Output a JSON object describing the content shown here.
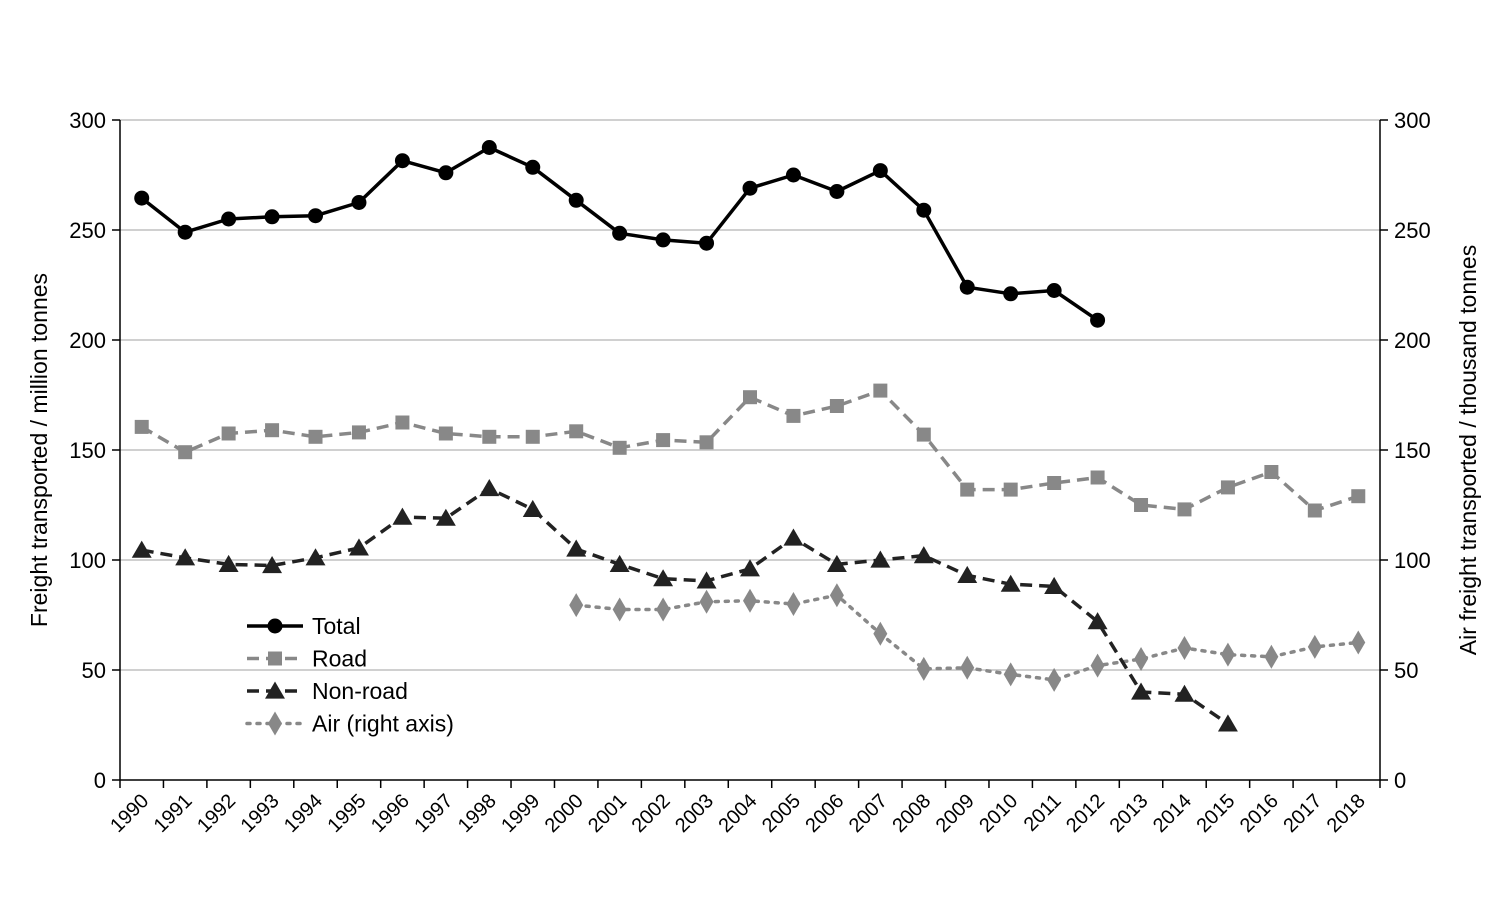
{
  "chart_data": {
    "type": "line",
    "title": "",
    "xlabel": "",
    "ylabel": "Freight transported / million tonnes",
    "y2label": "Air freight transported / thousand tonnes",
    "ylim": [
      0,
      300
    ],
    "y2lim": [
      0,
      300
    ],
    "yticks": [
      0,
      50,
      100,
      150,
      200,
      250,
      300
    ],
    "y2ticks": [
      0,
      50,
      100,
      150,
      200,
      250,
      300
    ],
    "grid": true,
    "legend_position": "lower-left",
    "x": [
      "1990",
      "1991",
      "1992",
      "1993",
      "1994",
      "1995",
      "1996",
      "1997",
      "1998",
      "1999",
      "2000",
      "2001",
      "2002",
      "2003",
      "2004",
      "2005",
      "2006",
      "2007",
      "2008",
      "2009",
      "2010",
      "2011",
      "2012",
      "2013",
      "2014",
      "2015",
      "2016",
      "2017",
      "2018"
    ],
    "series": [
      {
        "name": "Total",
        "axis": "left",
        "color": "#000000",
        "line_style": "solid",
        "marker": "circle",
        "values": [
          264.5,
          249,
          255,
          256,
          256.5,
          262.5,
          281.5,
          276,
          287.5,
          278.5,
          263.5,
          248.5,
          245.5,
          244,
          269,
          275,
          267.5,
          277,
          259,
          224,
          221,
          222.5,
          209,
          null,
          null,
          null,
          null,
          null,
          null
        ]
      },
      {
        "name": "Road",
        "axis": "left",
        "color": "#888888",
        "line_style": "dashed",
        "marker": "square",
        "values": [
          160.5,
          149,
          157.5,
          159,
          156,
          158,
          162.5,
          157.5,
          156,
          156,
          158.5,
          151,
          154.5,
          153.5,
          174,
          165.5,
          170,
          177,
          157,
          132,
          132,
          135,
          137.5,
          125,
          123,
          133,
          140,
          122.5,
          129
        ]
      },
      {
        "name": "Non-road",
        "axis": "left",
        "color": "#222222",
        "line_style": "dashed",
        "marker": "triangle",
        "values": [
          104.5,
          101,
          98,
          97.5,
          101,
          105.5,
          119.5,
          119,
          132.5,
          123,
          105,
          98,
          91.5,
          90.5,
          96,
          110,
          98,
          100,
          102,
          93,
          89,
          88,
          72,
          40,
          39,
          25.5,
          null,
          null,
          null
        ]
      },
      {
        "name": "Air (right axis)",
        "axis": "right",
        "color": "#888888",
        "line_style": "dotted",
        "marker": "diamond",
        "values": [
          null,
          null,
          null,
          null,
          null,
          null,
          null,
          null,
          null,
          null,
          79.5,
          77.5,
          77.5,
          81,
          81.5,
          80,
          84,
          66.5,
          50.5,
          51,
          48,
          45.5,
          52,
          55,
          60,
          57,
          56,
          60.5,
          62.5
        ]
      }
    ]
  }
}
